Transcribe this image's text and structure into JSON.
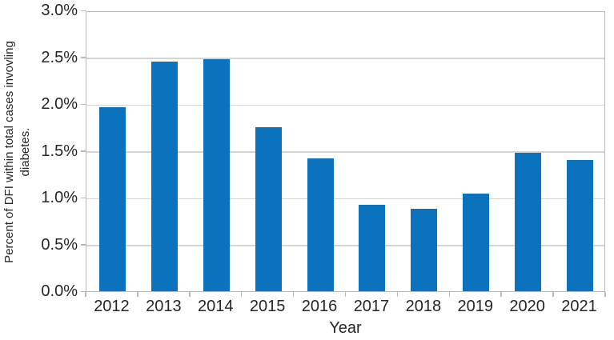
{
  "chart_data": {
    "type": "bar",
    "title": "",
    "xlabel": "Year",
    "ylabel": "Percent of DFI within total cases invovling diabetes.",
    "ylabel_lines": [
      "Percent of DFI within total cases invovling",
      "diabetes."
    ],
    "categories": [
      "2012",
      "2013",
      "2014",
      "2015",
      "2016",
      "2017",
      "2018",
      "2019",
      "2020",
      "2021"
    ],
    "values": [
      1.97,
      2.45,
      2.48,
      1.75,
      1.42,
      0.92,
      0.88,
      1.04,
      1.48,
      1.4
    ],
    "ylim": [
      0,
      3.0
    ],
    "ytick_step": 0.5,
    "ytick_labels": [
      "0.0%",
      "0.5%",
      "1.0%",
      "1.5%",
      "2.0%",
      "2.5%",
      "3.0%"
    ],
    "grid": true,
    "legend": "none",
    "bar_color": "#0b72bd",
    "grid_color": "#d4d4d4",
    "axis_color": "#b9b9b9",
    "text_color": "#262626"
  }
}
